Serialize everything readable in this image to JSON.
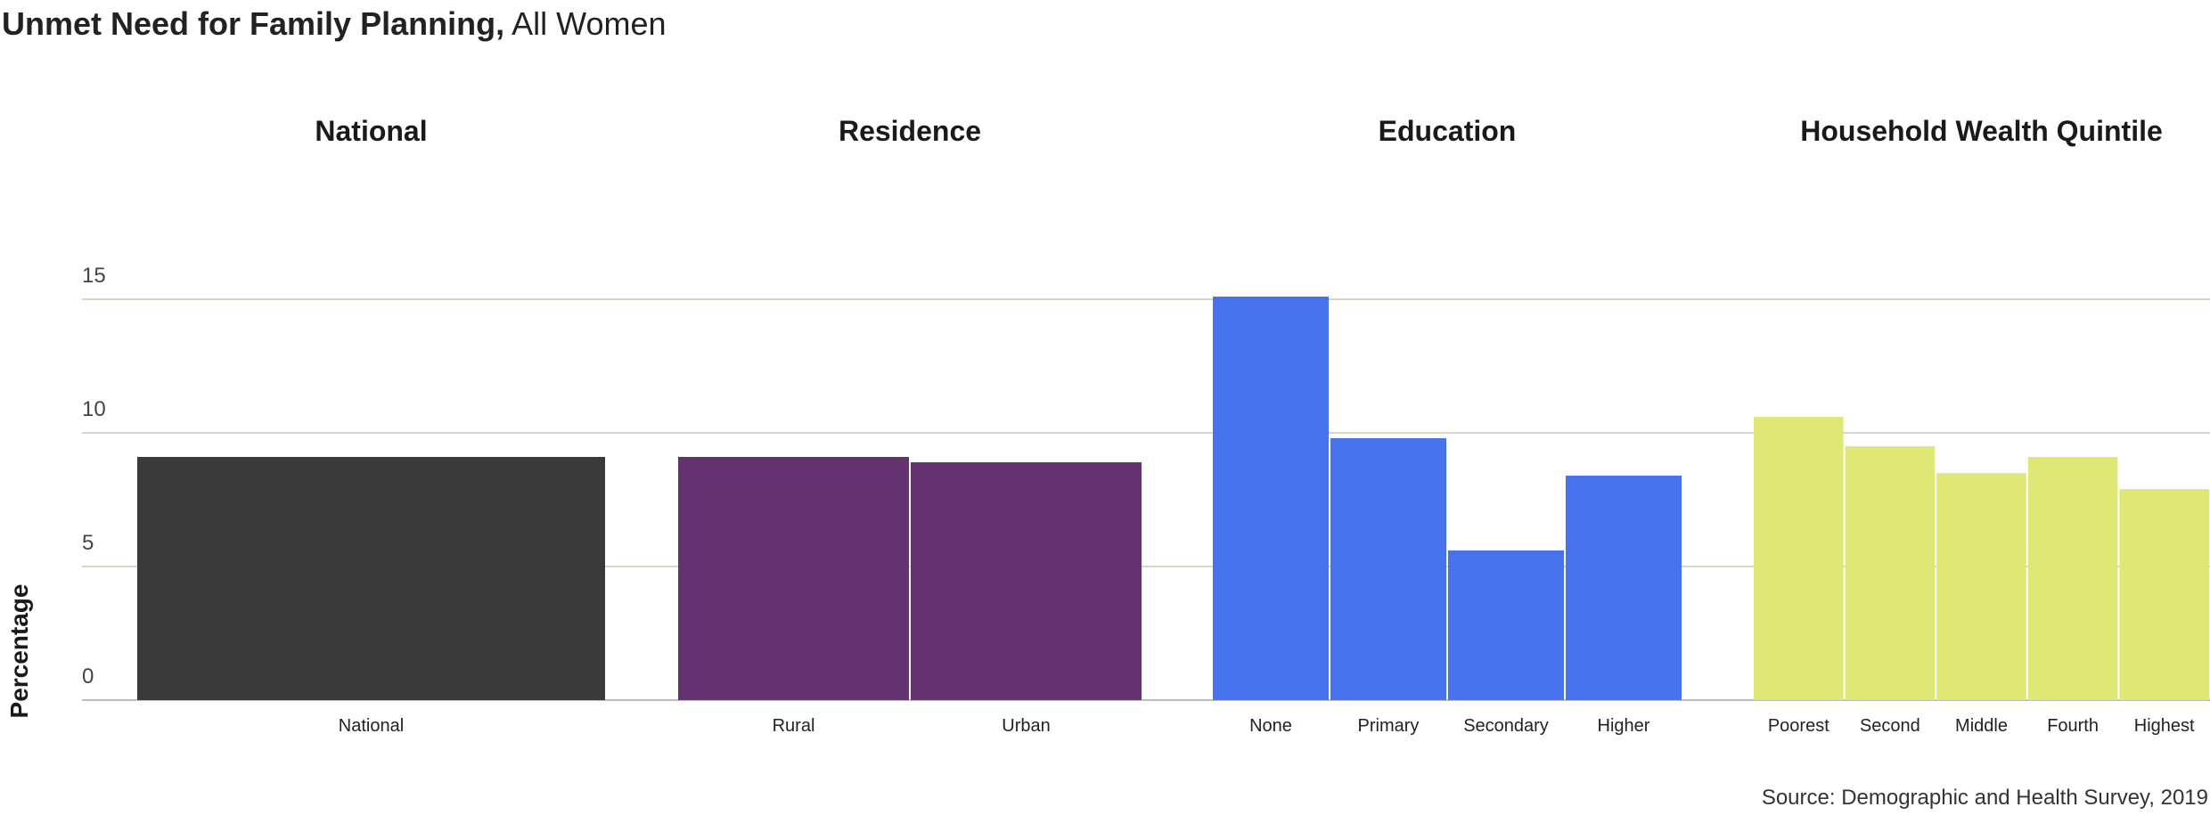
{
  "title": {
    "bold": "Unmet Need for Family Planning,",
    "rest": " All Women"
  },
  "source": "Source: Demographic and Health Survey, 2019",
  "chart_data": {
    "type": "bar",
    "ylabel": "Percentage",
    "ylim": [
      0,
      15
    ],
    "yticks": [
      0,
      5,
      10,
      15
    ],
    "grid": true,
    "groups": [
      {
        "name": "National",
        "color": "#3a3a3a",
        "categories": [
          "National"
        ],
        "values": [
          9.1
        ]
      },
      {
        "name": "Residence",
        "color": "#64326e",
        "categories": [
          "Rural",
          "Urban"
        ],
        "values": [
          9.1,
          8.9
        ]
      },
      {
        "name": "Education",
        "color": "#4672ee",
        "categories": [
          "None",
          "Primary",
          "Secondary",
          "Higher"
        ],
        "values": [
          15.1,
          9.8,
          5.6,
          8.4
        ]
      },
      {
        "name": "Household Wealth Quintile",
        "color": "#dfe874",
        "categories": [
          "Poorest",
          "Second",
          "Middle",
          "Fourth",
          "Highest"
        ],
        "values": [
          10.6,
          9.5,
          8.5,
          9.1,
          7.9
        ]
      }
    ]
  }
}
